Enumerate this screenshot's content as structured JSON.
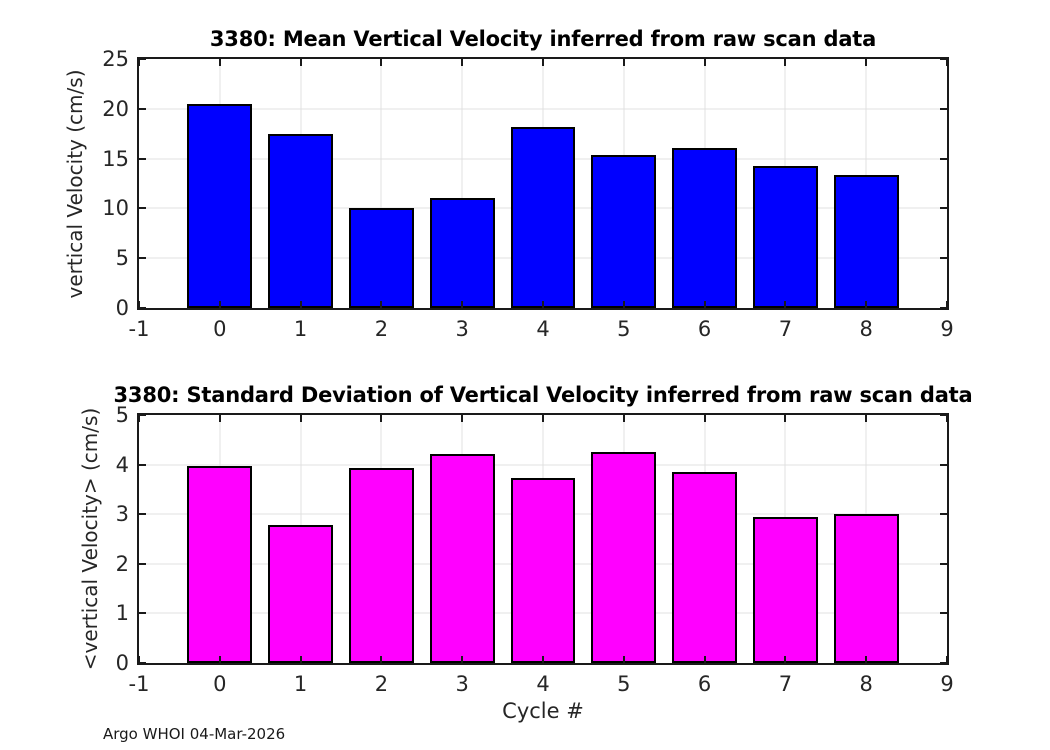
{
  "figure": {
    "footer": "Argo WHOI 04-Mar-2026",
    "background_color": "#ffffff",
    "axis_color": "#1a1a1a",
    "grid_color": "#e0e0e0",
    "text_color": "#262626"
  },
  "chart_data": [
    {
      "type": "bar",
      "title": "3380: Mean Vertical Velocity inferred from raw scan data",
      "xlabel": "",
      "ylabel": "vertical Velocity (cm/s)",
      "categories": [
        0,
        1,
        2,
        3,
        4,
        5,
        6,
        7,
        8
      ],
      "values": [
        20.5,
        17.5,
        10.0,
        11.0,
        18.2,
        15.4,
        16.1,
        14.3,
        13.4
      ],
      "xlim": [
        -1,
        9
      ],
      "ylim": [
        0,
        25
      ],
      "xticks": [
        -1,
        0,
        1,
        2,
        3,
        4,
        5,
        6,
        7,
        8,
        9
      ],
      "yticks": [
        0,
        5,
        10,
        15,
        20,
        25
      ],
      "grid": true,
      "legend": "none",
      "bar_width": 0.8,
      "bar_color": "#0000ff",
      "bar_edge_color": "#000000"
    },
    {
      "type": "bar",
      "title": "3380: Standard Deviation of Vertical Velocity inferred from raw scan data",
      "xlabel": "Cycle #",
      "ylabel": "<vertical Velocity> (cm/s)",
      "categories": [
        0,
        1,
        2,
        3,
        4,
        5,
        6,
        7,
        8
      ],
      "values": [
        3.98,
        2.79,
        3.93,
        4.21,
        3.74,
        4.25,
        3.86,
        2.95,
        3.01
      ],
      "xlim": [
        -1,
        9
      ],
      "ylim": [
        0,
        5
      ],
      "xticks": [
        -1,
        0,
        1,
        2,
        3,
        4,
        5,
        6,
        7,
        8,
        9
      ],
      "yticks": [
        0,
        1,
        2,
        3,
        4,
        5
      ],
      "grid": true,
      "legend": "none",
      "bar_width": 0.8,
      "bar_color": "#ff00ff",
      "bar_edge_color": "#000000"
    }
  ]
}
